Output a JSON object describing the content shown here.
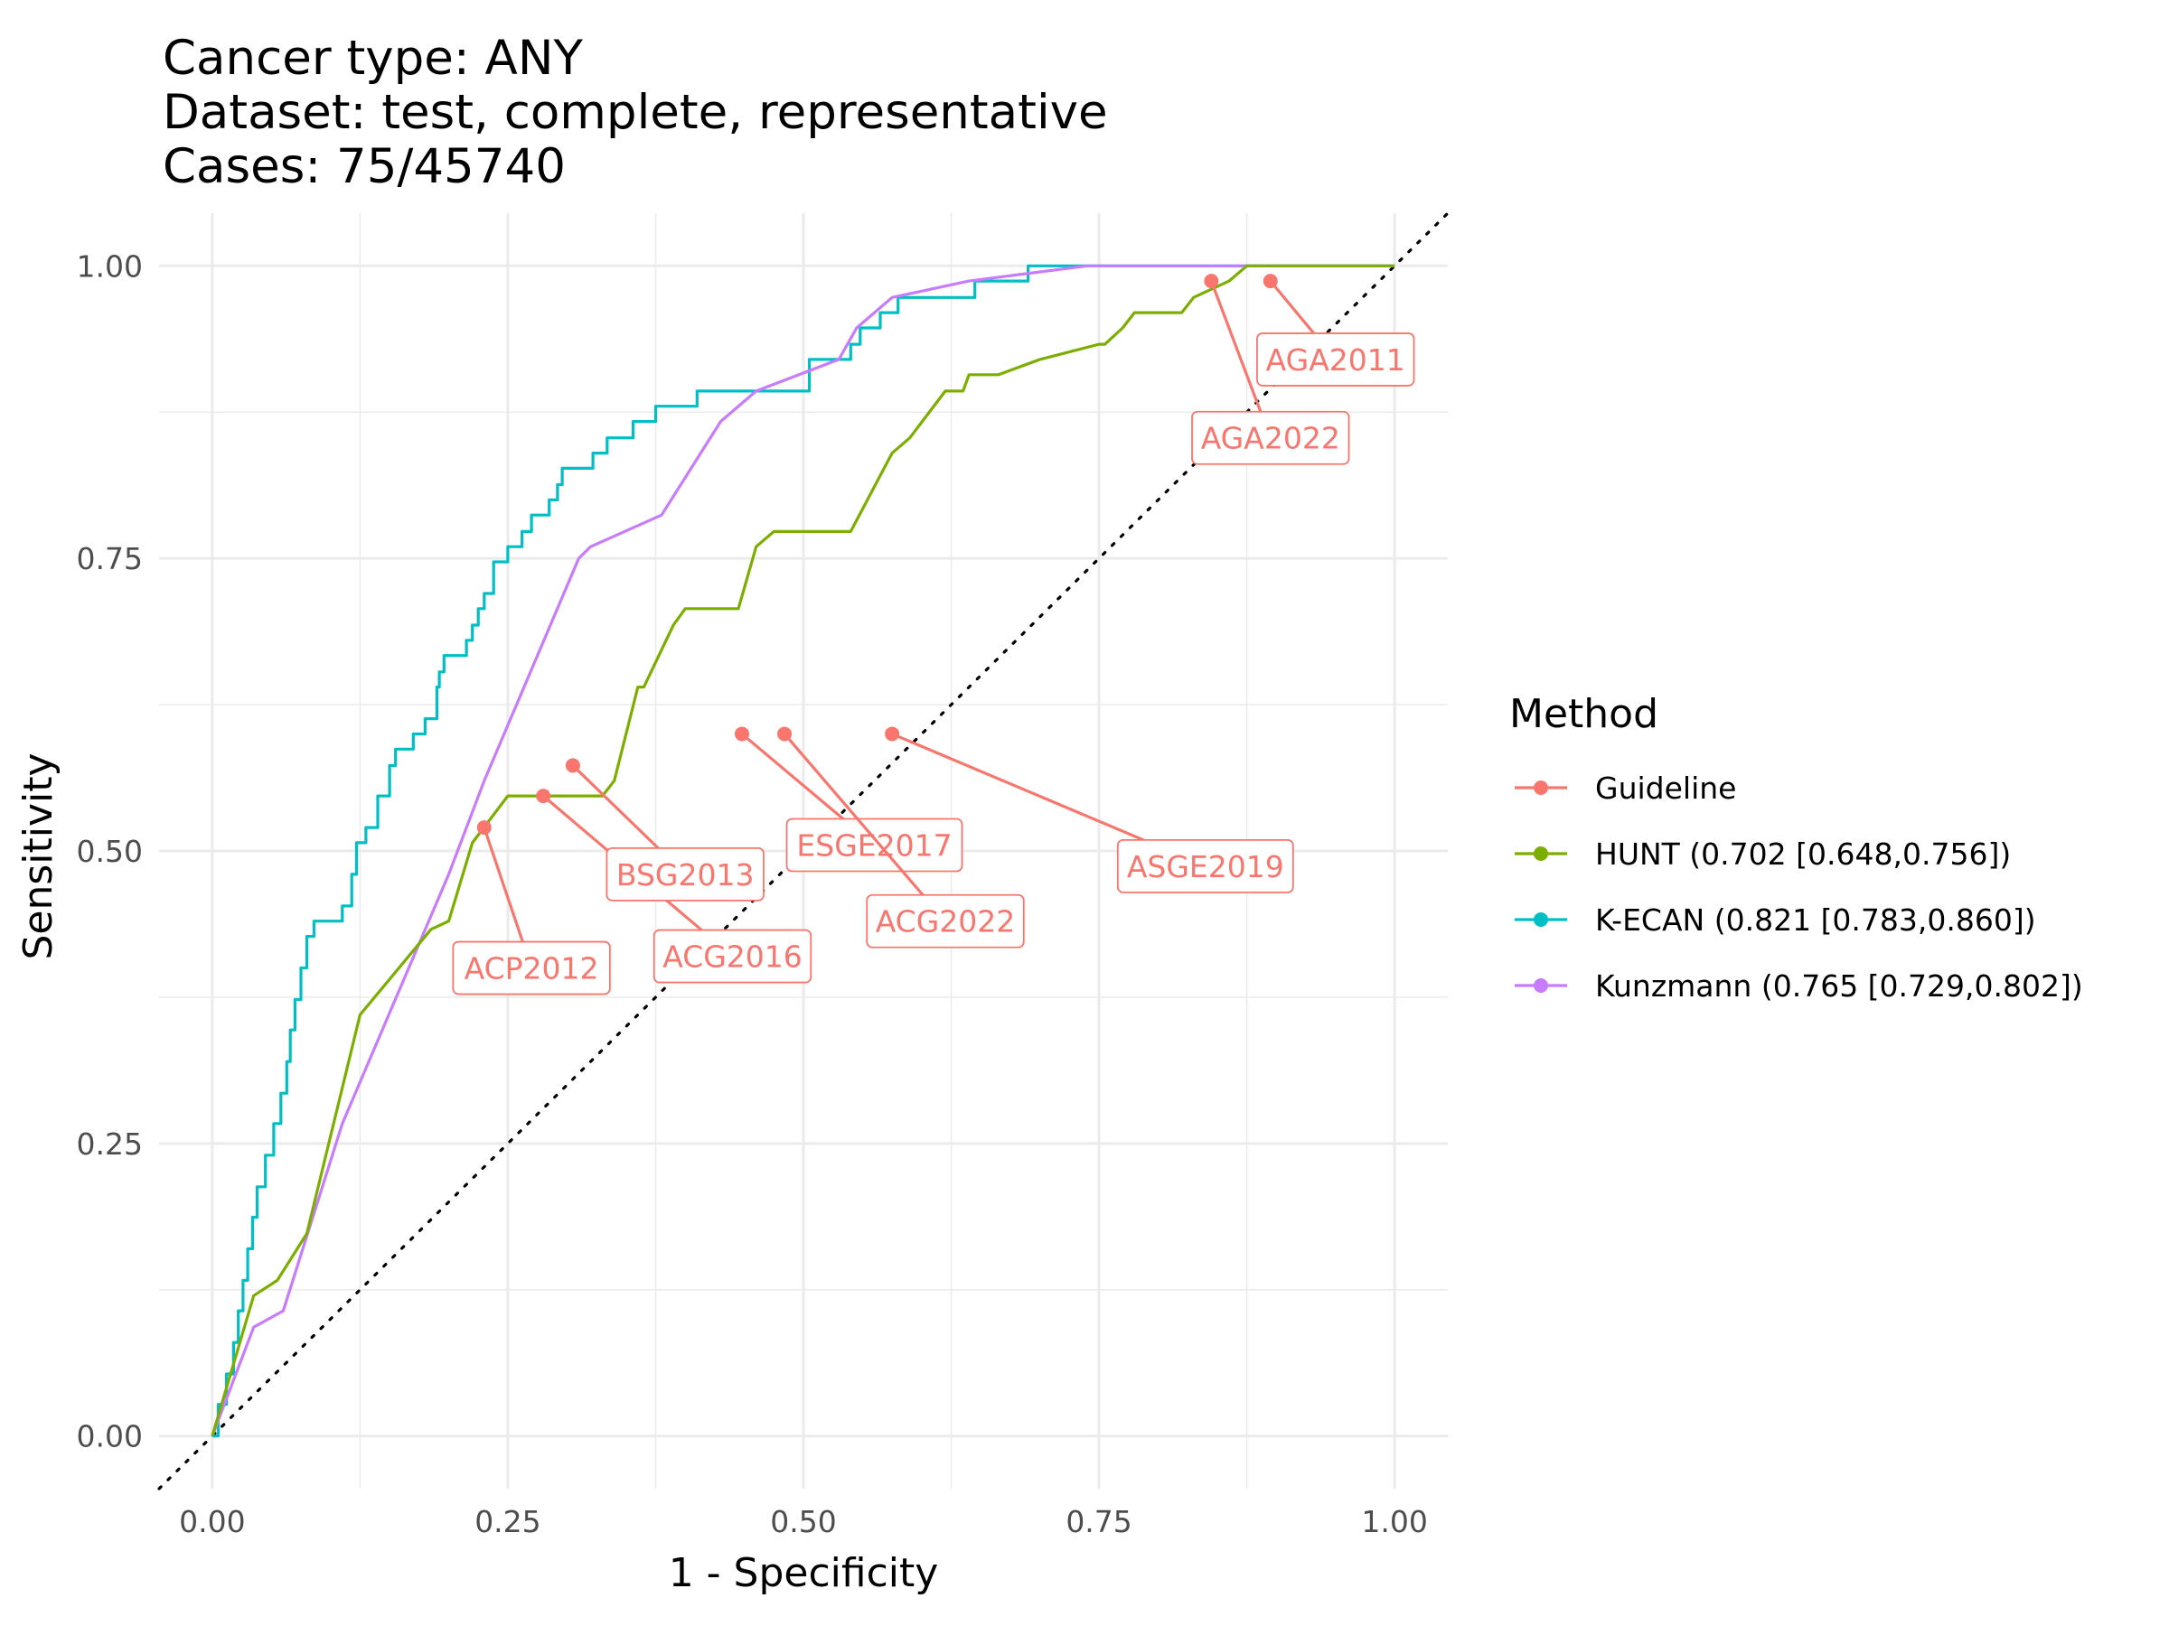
{
  "chart_data": {
    "type": "line",
    "title_lines": [
      "Cancer type: ANY",
      "Dataset: test, complete, representative",
      "Cases: 75/45740"
    ],
    "xlabel": "1 - Specificity",
    "ylabel": "Sensitivity",
    "xlim": [
      -0.045,
      1.045
    ],
    "ylim": [
      -0.045,
      1.045
    ],
    "x_ticks": [
      0,
      0.25,
      0.5,
      0.75,
      1
    ],
    "x_tick_labels": [
      "0.00",
      "0.25",
      "0.50",
      "0.75",
      "1.00"
    ],
    "y_ticks": [
      0,
      0.25,
      0.5,
      0.75,
      1
    ],
    "y_tick_labels": [
      "0.00",
      "0.25",
      "0.50",
      "0.75",
      "1.00"
    ],
    "grid": true,
    "reference_line": "diagonal, dotted, black",
    "legend": {
      "title": "Method",
      "position": "right",
      "entries": [
        {
          "label": "Guideline",
          "color": "#F8766D"
        },
        {
          "label": "HUNT (0.702 [0.648,0.756])",
          "color": "#7CAE00"
        },
        {
          "label": "K-ECAN (0.821 [0.783,0.860])",
          "color": "#00BFC4"
        },
        {
          "label": "Kunzmann (0.765 [0.729,0.802])",
          "color": "#C77CFF"
        }
      ]
    },
    "series": [
      {
        "color": "#00BFC4",
        "step": true,
        "points": [
          [
            0,
            0
          ],
          [
            0.005,
            0.027
          ],
          [
            0.012,
            0.053
          ],
          [
            0.018,
            0.08
          ],
          [
            0.022,
            0.107
          ],
          [
            0.026,
            0.133
          ],
          [
            0.03,
            0.16
          ],
          [
            0.034,
            0.187
          ],
          [
            0.038,
            0.213
          ],
          [
            0.045,
            0.24
          ],
          [
            0.052,
            0.267
          ],
          [
            0.058,
            0.293
          ],
          [
            0.063,
            0.32
          ],
          [
            0.066,
            0.347
          ],
          [
            0.07,
            0.373
          ],
          [
            0.075,
            0.4
          ],
          [
            0.08,
            0.427
          ],
          [
            0.086,
            0.44
          ],
          [
            0.11,
            0.453
          ],
          [
            0.118,
            0.48
          ],
          [
            0.122,
            0.507
          ],
          [
            0.13,
            0.52
          ],
          [
            0.14,
            0.547
          ],
          [
            0.15,
            0.573
          ],
          [
            0.155,
            0.587
          ],
          [
            0.17,
            0.6
          ],
          [
            0.18,
            0.613
          ],
          [
            0.19,
            0.64
          ],
          [
            0.192,
            0.653
          ],
          [
            0.196,
            0.667
          ],
          [
            0.215,
            0.68
          ],
          [
            0.22,
            0.693
          ],
          [
            0.225,
            0.707
          ],
          [
            0.23,
            0.72
          ],
          [
            0.238,
            0.747
          ],
          [
            0.25,
            0.76
          ],
          [
            0.262,
            0.773
          ],
          [
            0.27,
            0.787
          ],
          [
            0.285,
            0.8
          ],
          [
            0.292,
            0.813
          ],
          [
            0.296,
            0.827
          ],
          [
            0.322,
            0.84
          ],
          [
            0.334,
            0.853
          ],
          [
            0.356,
            0.867
          ],
          [
            0.375,
            0.88
          ],
          [
            0.41,
            0.893
          ],
          [
            0.505,
            0.92
          ],
          [
            0.54,
            0.933
          ],
          [
            0.548,
            0.947
          ],
          [
            0.565,
            0.96
          ],
          [
            0.58,
            0.973
          ],
          [
            0.645,
            0.987
          ],
          [
            0.69,
            1
          ],
          [
            1,
            1
          ]
        ]
      },
      {
        "color": "#C77CFF",
        "step": false,
        "points": [
          [
            0,
            0
          ],
          [
            0.035,
            0.093
          ],
          [
            0.06,
            0.107
          ],
          [
            0.11,
            0.267
          ],
          [
            0.2,
            0.48
          ],
          [
            0.23,
            0.56
          ],
          [
            0.31,
            0.75
          ],
          [
            0.32,
            0.76
          ],
          [
            0.38,
            0.787
          ],
          [
            0.43,
            0.867
          ],
          [
            0.46,
            0.893
          ],
          [
            0.53,
            0.92
          ],
          [
            0.545,
            0.947
          ],
          [
            0.575,
            0.973
          ],
          [
            0.64,
            0.987
          ],
          [
            0.74,
            1
          ],
          [
            1,
            1
          ]
        ]
      },
      {
        "color": "#7CAE00",
        "step": false,
        "points": [
          [
            0,
            0
          ],
          [
            0.035,
            0.12
          ],
          [
            0.055,
            0.133
          ],
          [
            0.08,
            0.173
          ],
          [
            0.125,
            0.36
          ],
          [
            0.185,
            0.433
          ],
          [
            0.2,
            0.44
          ],
          [
            0.22,
            0.507
          ],
          [
            0.25,
            0.547
          ],
          [
            0.33,
            0.547
          ],
          [
            0.34,
            0.56
          ],
          [
            0.36,
            0.64
          ],
          [
            0.365,
            0.64
          ],
          [
            0.39,
            0.693
          ],
          [
            0.4,
            0.707
          ],
          [
            0.445,
            0.707
          ],
          [
            0.46,
            0.76
          ],
          [
            0.475,
            0.773
          ],
          [
            0.54,
            0.773
          ],
          [
            0.575,
            0.84
          ],
          [
            0.59,
            0.853
          ],
          [
            0.62,
            0.893
          ],
          [
            0.635,
            0.893
          ],
          [
            0.64,
            0.907
          ],
          [
            0.665,
            0.907
          ],
          [
            0.7,
            0.92
          ],
          [
            0.75,
            0.933
          ],
          [
            0.755,
            0.933
          ],
          [
            0.77,
            0.947
          ],
          [
            0.78,
            0.96
          ],
          [
            0.82,
            0.96
          ],
          [
            0.83,
            0.973
          ],
          [
            0.86,
            0.987
          ],
          [
            0.875,
            1
          ],
          [
            1,
            1
          ]
        ]
      }
    ],
    "guideline_points": [
      {
        "label": "ACP2012",
        "x": 0.23,
        "y": 0.52,
        "label_x": 0.27,
        "label_y": 0.4
      },
      {
        "label": "ACG2016",
        "x": 0.28,
        "y": 0.547,
        "label_x": 0.44,
        "label_y": 0.41
      },
      {
        "label": "BSG2013",
        "x": 0.305,
        "y": 0.573,
        "label_x": 0.4,
        "label_y": 0.48
      },
      {
        "label": "ESGE2017",
        "x": 0.448,
        "y": 0.6,
        "label_x": 0.56,
        "label_y": 0.505
      },
      {
        "label": "ACG2022",
        "x": 0.484,
        "y": 0.6,
        "label_x": 0.62,
        "label_y": 0.44
      },
      {
        "label": "ASGE2019",
        "x": 0.575,
        "y": 0.6,
        "label_x": 0.84,
        "label_y": 0.487
      },
      {
        "label": "AGA2022",
        "x": 0.845,
        "y": 0.987,
        "label_x": 0.895,
        "label_y": 0.853
      },
      {
        "label": "AGA2011",
        "x": 0.895,
        "y": 0.987,
        "label_x": 0.95,
        "label_y": 0.92
      }
    ]
  }
}
